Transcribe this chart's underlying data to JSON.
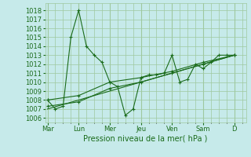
{
  "bg_color": "#c6eaea",
  "grid_color": "#9fc89f",
  "line_color": "#1a6b1a",
  "marker_color": "#1a6b1a",
  "xlabel": "Pression niveau de la mer( hPa )",
  "xlabel_color": "#1a6b1a",
  "yticks": [
    1006,
    1007,
    1008,
    1009,
    1010,
    1011,
    1012,
    1013,
    1014,
    1015,
    1016,
    1017,
    1018
  ],
  "ylim": [
    1005.5,
    1018.8
  ],
  "xlim": [
    -0.3,
    25.5
  ],
  "x_day_labels": [
    "Mar",
    "Lun",
    "Mer",
    "Jeu",
    "Ven",
    "Sam",
    "D"
  ],
  "x_day_positions": [
    0,
    4,
    8,
    12,
    16,
    20,
    24
  ],
  "series1_x": [
    0,
    1,
    2,
    3,
    4,
    5,
    6,
    7,
    8,
    9,
    10,
    11,
    12,
    13,
    14,
    15,
    16,
    17,
    18,
    19,
    20,
    21,
    22,
    23,
    24
  ],
  "series1_y": [
    1008,
    1007,
    1007.3,
    1015,
    1018,
    1014,
    1013,
    1012.2,
    1010,
    1009.5,
    1006.3,
    1007,
    1010.5,
    1010.8,
    1010.8,
    1011,
    1013,
    1010,
    1010.3,
    1012,
    1011.5,
    1012.2,
    1013,
    1013,
    1013
  ],
  "series2_x": [
    0,
    4,
    8,
    12,
    16,
    20,
    24
  ],
  "series2_y": [
    1008,
    1008.5,
    1010,
    1010.5,
    1011.2,
    1012.2,
    1013
  ],
  "series3_x": [
    0,
    4,
    8,
    12,
    16,
    20,
    24
  ],
  "series3_y": [
    1007.3,
    1007.8,
    1009.3,
    1010,
    1011,
    1012,
    1013
  ],
  "series4_x": [
    0,
    24
  ],
  "series4_y": [
    1007,
    1013
  ]
}
